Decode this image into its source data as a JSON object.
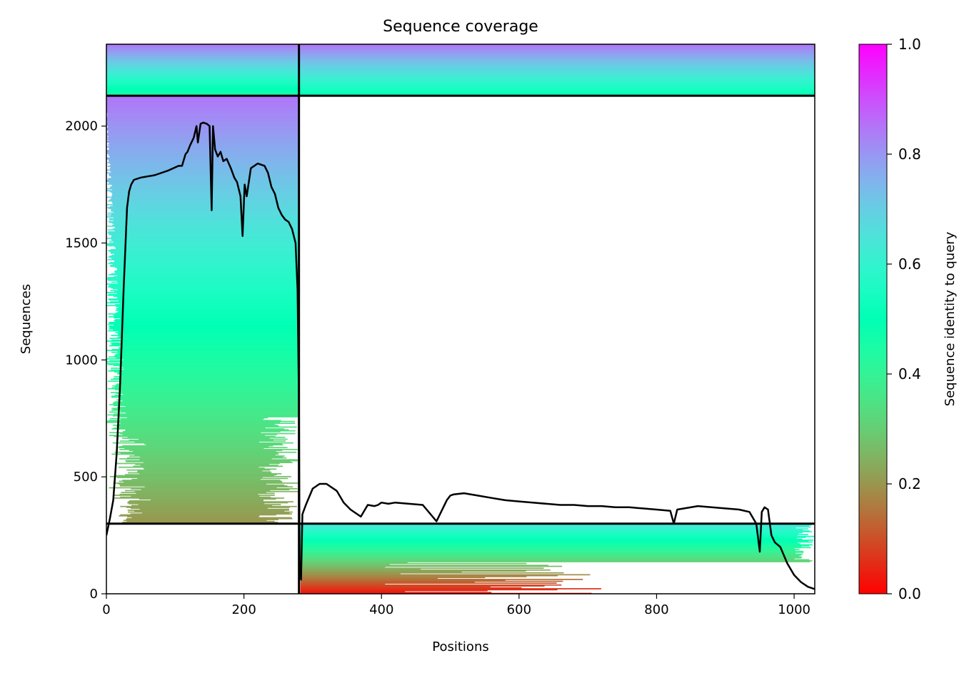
{
  "chart_data": {
    "type": "heatmap",
    "title": "Sequence coverage",
    "xlabel": "Positions",
    "ylabel": "Sequences",
    "xlim": [
      0,
      1030
    ],
    "ylim": [
      0,
      2350
    ],
    "x_ticks": [
      {
        "value": 0,
        "label": "0"
      },
      {
        "value": 200,
        "label": "200"
      },
      {
        "value": 400,
        "label": "400"
      },
      {
        "value": 600,
        "label": "600"
      },
      {
        "value": 800,
        "label": "800"
      },
      {
        "value": 1000,
        "label": "1000"
      }
    ],
    "y_ticks": [
      {
        "value": 0,
        "label": "0"
      },
      {
        "value": 500,
        "label": "500"
      },
      {
        "value": 1000,
        "label": "1000"
      },
      {
        "value": 1500,
        "label": "1500"
      },
      {
        "value": 2000,
        "label": "2000"
      }
    ],
    "colorbar": {
      "label": "Sequence identity to query",
      "colormap": "rainbow",
      "range": [
        0.0,
        1.0
      ],
      "ticks": [
        {
          "value": 0.0,
          "label": "0.0"
        },
        {
          "value": 0.2,
          "label": "0.2"
        },
        {
          "value": 0.4,
          "label": "0.4"
        },
        {
          "value": 0.6,
          "label": "0.6"
        },
        {
          "value": 0.8,
          "label": "0.8"
        },
        {
          "value": 1.0,
          "label": "1.0"
        }
      ]
    },
    "boundaries": {
      "vertical_x": [
        280
      ],
      "horizontal_y": [
        300,
        2130
      ]
    },
    "blocks": [
      {
        "x": [
          0,
          280
        ],
        "y": [
          300,
          2130
        ],
        "identity": [
          0.2,
          0.85
        ]
      },
      {
        "x": [
          280,
          1030
        ],
        "y": [
          0,
          300
        ],
        "identity": [
          0.02,
          0.65
        ]
      },
      {
        "x": [
          0,
          280
        ],
        "y": [
          2130,
          2350
        ],
        "identity": [
          0.45,
          0.85
        ]
      },
      {
        "x": [
          280,
          1030
        ],
        "y": [
          2130,
          2350
        ],
        "identity": [
          0.5,
          0.85
        ]
      }
    ],
    "series": [
      {
        "type": "line",
        "color": "#000000",
        "x": [
          0,
          5,
          10,
          15,
          20,
          25,
          30,
          33,
          36,
          40,
          50,
          70,
          90,
          105,
          110,
          115,
          118,
          122,
          127,
          131,
          133,
          137,
          141,
          146,
          150,
          153,
          155,
          158,
          162,
          166,
          170,
          175,
          181,
          186,
          190,
          195,
          198,
          201,
          204,
          210,
          220,
          230,
          235,
          240,
          245,
          250,
          255,
          260,
          265,
          270,
          275,
          278,
          280,
          281,
          283,
          285,
          290,
          300,
          310,
          320,
          335,
          345,
          355,
          370,
          380,
          390,
          395,
          400,
          410,
          420,
          440,
          460,
          480,
          495,
          500,
          505,
          520,
          540,
          560,
          580,
          600,
          620,
          640,
          660,
          680,
          700,
          720,
          740,
          760,
          780,
          800,
          820,
          825,
          830,
          860,
          880,
          900,
          920,
          935,
          945,
          950,
          953,
          957,
          962,
          967,
          972,
          980,
          990,
          1000,
          1010,
          1020,
          1030
        ],
        "y": [
          250,
          320,
          400,
          600,
          900,
          1300,
          1650,
          1720,
          1750,
          1770,
          1780,
          1790,
          1810,
          1830,
          1830,
          1880,
          1890,
          1920,
          1950,
          2000,
          1930,
          2010,
          2015,
          2010,
          2000,
          1640,
          2000,
          1900,
          1870,
          1890,
          1850,
          1860,
          1820,
          1780,
          1760,
          1700,
          1530,
          1750,
          1700,
          1820,
          1840,
          1830,
          1800,
          1740,
          1710,
          1650,
          1620,
          1600,
          1590,
          1560,
          1500,
          1300,
          800,
          100,
          60,
          340,
          380,
          450,
          470,
          470,
          440,
          390,
          360,
          330,
          380,
          375,
          380,
          390,
          385,
          390,
          385,
          380,
          310,
          400,
          420,
          425,
          430,
          420,
          410,
          400,
          395,
          390,
          385,
          380,
          380,
          375,
          375,
          370,
          370,
          365,
          360,
          355,
          300,
          360,
          375,
          370,
          365,
          360,
          350,
          300,
          180,
          350,
          370,
          360,
          250,
          220,
          200,
          130,
          80,
          50,
          30,
          20
        ]
      }
    ]
  }
}
